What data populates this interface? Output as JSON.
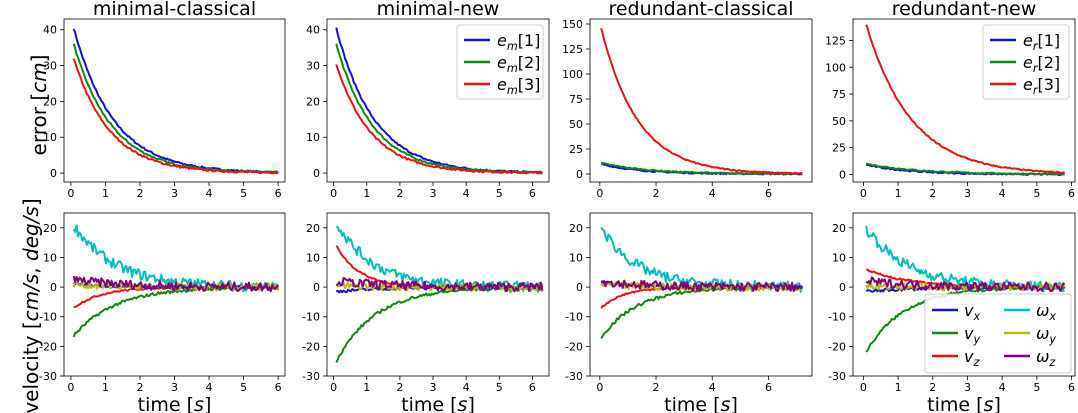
{
  "figure": {
    "ylabel_top": "error [cm]",
    "ylabel_bottom": "velocity [cm/s, deg/s]",
    "xlabel": "time [s]"
  },
  "chart_data": [
    {
      "type": "line",
      "title": "minimal-classical",
      "ylabel": "error [cm]",
      "xlabel": "",
      "xlim": [
        -0.2,
        6.2
      ],
      "ylim": [
        -2.5,
        43
      ],
      "xticks": [
        0,
        1,
        2,
        3,
        4,
        5,
        6
      ],
      "yticks": [
        0,
        10,
        20,
        30,
        40
      ],
      "series": [
        {
          "color": "#1010e0",
          "start": 40.5,
          "tau": 1.15,
          "tmin": 0.08,
          "tmax": 6.0,
          "noise": 0.25
        },
        {
          "color": "#118811",
          "start": 36.0,
          "tau": 1.1,
          "tmin": 0.08,
          "tmax": 6.0,
          "noise": 0.25
        },
        {
          "color": "#ee1111",
          "start": 32.0,
          "tau": 1.05,
          "tmin": 0.08,
          "tmax": 6.0,
          "noise": 0.25
        }
      ]
    },
    {
      "type": "line",
      "title": "minimal-new",
      "ylabel": "",
      "xlabel": "",
      "xlim": [
        -0.2,
        6.5
      ],
      "ylim": [
        -2.5,
        43
      ],
      "xticks": [
        0,
        1,
        2,
        3,
        4,
        5,
        6
      ],
      "yticks": [
        0,
        10,
        20,
        30,
        40
      ],
      "legend": {
        "position": "top-right"
      },
      "series": [
        {
          "name": "e_m[1]",
          "color": "#1010e0",
          "start": 40.5,
          "tau": 1.15,
          "tmin": 0.08,
          "tmax": 6.3,
          "noise": 0.25
        },
        {
          "name": "e_m[2]",
          "color": "#118811",
          "start": 36.0,
          "tau": 1.1,
          "tmin": 0.08,
          "tmax": 6.3,
          "noise": 0.25
        },
        {
          "name": "e_m[3]",
          "color": "#ee1111",
          "start": 30.5,
          "tau": 1.05,
          "tmin": 0.08,
          "tmax": 6.3,
          "noise": 0.25
        }
      ]
    },
    {
      "type": "line",
      "title": "redundant-classical",
      "ylabel": "",
      "xlabel": "",
      "xlim": [
        -0.35,
        7.55
      ],
      "ylim": [
        -8,
        155
      ],
      "xticks": [
        0,
        2,
        4,
        6
      ],
      "yticks": [
        0,
        25,
        50,
        75,
        100,
        125,
        150
      ],
      "series": [
        {
          "color": "#1010e0",
          "start": 10.0,
          "tau": 1.4,
          "tmin": 0.05,
          "tmax": 7.2,
          "noise": 0.6
        },
        {
          "color": "#118811",
          "start": 11.0,
          "tau": 1.7,
          "tmin": 0.05,
          "tmax": 7.2,
          "noise": 0.6
        },
        {
          "color": "#ee1111",
          "start": 146.0,
          "tau": 1.3,
          "tmin": 0.05,
          "tmax": 7.2,
          "noise": 0.6
        }
      ]
    },
    {
      "type": "line",
      "title": "redundant-new",
      "ylabel": "",
      "xlabel": "",
      "xlim": [
        -0.3,
        6.1
      ],
      "ylim": [
        -7,
        145
      ],
      "xticks": [
        0,
        1,
        2,
        3,
        4,
        5,
        6
      ],
      "yticks": [
        0,
        25,
        50,
        75,
        100,
        125
      ],
      "legend": {
        "position": "top-right"
      },
      "series": [
        {
          "name": "e_r[1]",
          "color": "#1010e0",
          "start": 9.0,
          "tau": 1.3,
          "tmin": 0.08,
          "tmax": 5.8,
          "noise": 0.6
        },
        {
          "name": "e_r[2]",
          "color": "#118811",
          "start": 10.0,
          "tau": 1.6,
          "tmin": 0.08,
          "tmax": 5.8,
          "noise": 0.6
        },
        {
          "name": "e_r[3]",
          "color": "#ee1111",
          "start": 140.0,
          "tau": 1.3,
          "tmin": 0.08,
          "tmax": 5.8,
          "noise": 0.6
        }
      ]
    },
    {
      "type": "line",
      "title": "",
      "ylabel": "velocity [cm/s, deg/s]",
      "xlabel": "time [s]",
      "xlim": [
        -0.2,
        6.2
      ],
      "ylim": [
        -30,
        25
      ],
      "xticks": [
        0,
        1,
        2,
        3,
        4,
        5,
        6
      ],
      "yticks": [
        -30,
        -20,
        -10,
        0,
        10,
        20
      ],
      "series": [
        {
          "color": "#00bebe",
          "start": 21.0,
          "tau": 1.2,
          "tmin": 0.08,
          "tmax": 6.0,
          "noise": 1.8
        },
        {
          "color": "#118811",
          "start": -16.5,
          "tau": 1.2,
          "tmin": 0.08,
          "tmax": 6.0,
          "noise": 0.5
        },
        {
          "color": "#ee1111",
          "start": -7.0,
          "tau": 0.8,
          "tmin": 0.08,
          "tmax": 6.0,
          "noise": 0.3
        },
        {
          "color": "#1010e0",
          "start": 1.0,
          "tau": 1.2,
          "tmin": 0.08,
          "tmax": 6.0,
          "noise": 0.5
        },
        {
          "color": "#bbbb00",
          "start": 1.0,
          "tau": 1.0,
          "tmin": 0.08,
          "tmax": 6.0,
          "noise": 1.2
        },
        {
          "color": "#800080",
          "start": 2.5,
          "tau": 1.5,
          "tmin": 0.08,
          "tmax": 6.0,
          "noise": 1.5
        }
      ]
    },
    {
      "type": "line",
      "title": "",
      "ylabel": "",
      "xlabel": "time [s]",
      "xlim": [
        -0.2,
        6.5
      ],
      "ylim": [
        -30,
        25
      ],
      "xticks": [
        0,
        1,
        2,
        3,
        4,
        5,
        6
      ],
      "yticks": [
        -30,
        -20,
        -10,
        0,
        10,
        20
      ],
      "series": [
        {
          "color": "#00bebe",
          "start": 22.0,
          "tau": 1.1,
          "tmin": 0.08,
          "tmax": 6.3,
          "noise": 1.8
        },
        {
          "color": "#118811",
          "start": -25.0,
          "tau": 1.2,
          "tmin": 0.08,
          "tmax": 6.3,
          "noise": 0.5
        },
        {
          "color": "#ee1111",
          "start": 14.0,
          "tau": 0.7,
          "tmin": 0.08,
          "tmax": 6.3,
          "noise": 0.3
        },
        {
          "color": "#1010e0",
          "start": -1.5,
          "tau": 1.5,
          "tmin": 0.08,
          "tmax": 6.3,
          "noise": 0.5
        },
        {
          "color": "#bbbb00",
          "start": 0.5,
          "tau": 1.0,
          "tmin": 0.08,
          "tmax": 6.3,
          "noise": 1.2
        },
        {
          "color": "#800080",
          "start": 2.0,
          "tau": 1.5,
          "tmin": 0.08,
          "tmax": 6.3,
          "noise": 1.5
        }
      ]
    },
    {
      "type": "line",
      "title": "",
      "ylabel": "",
      "xlabel": "time [s]",
      "xlim": [
        -0.35,
        7.55
      ],
      "ylim": [
        -30,
        25
      ],
      "xticks": [
        0,
        2,
        4,
        6
      ],
      "yticks": [
        -30,
        -20,
        -10,
        0,
        10,
        20
      ],
      "series": [
        {
          "color": "#00bebe",
          "start": 20.0,
          "tau": 1.3,
          "tmin": 0.05,
          "tmax": 7.2,
          "noise": 1.8
        },
        {
          "color": "#118811",
          "start": -17.0,
          "tau": 1.3,
          "tmin": 0.05,
          "tmax": 7.2,
          "noise": 0.5
        },
        {
          "color": "#ee1111",
          "start": -7.0,
          "tau": 0.8,
          "tmin": 0.05,
          "tmax": 7.2,
          "noise": 0.3
        },
        {
          "color": "#1010e0",
          "start": 1.5,
          "tau": 1.3,
          "tmin": 0.05,
          "tmax": 7.2,
          "noise": 0.5
        },
        {
          "color": "#bbbb00",
          "start": 1.0,
          "tau": 1.0,
          "tmin": 0.05,
          "tmax": 7.2,
          "noise": 1.2
        },
        {
          "color": "#800080",
          "start": 2.0,
          "tau": 1.5,
          "tmin": 0.05,
          "tmax": 7.2,
          "noise": 1.5
        }
      ]
    },
    {
      "type": "line",
      "title": "",
      "ylabel": "",
      "xlabel": "time [s]",
      "xlim": [
        -0.3,
        6.1
      ],
      "ylim": [
        -30,
        25
      ],
      "xticks": [
        0,
        1,
        2,
        3,
        4,
        5,
        6
      ],
      "yticks": [
        -30,
        -20,
        -10,
        0,
        10,
        20
      ],
      "legend": {
        "position": "bottom-right",
        "columns": 2
      },
      "series": [
        {
          "name": "v_x",
          "color": "#1010e0",
          "start": -1.5,
          "tau": 1.5,
          "tmin": 0.08,
          "tmax": 5.8,
          "noise": 0.5
        },
        {
          "name": "v_y",
          "color": "#118811",
          "start": -22.0,
          "tau": 1.1,
          "tmin": 0.08,
          "tmax": 5.8,
          "noise": 0.5
        },
        {
          "name": "v_z",
          "color": "#ee1111",
          "start": 6.0,
          "tau": 1.2,
          "tmin": 0.08,
          "tmax": 5.8,
          "noise": 0.3
        },
        {
          "name": "ω_x",
          "color": "#00bebe",
          "start": 20.0,
          "tau": 1.2,
          "tmin": 0.08,
          "tmax": 5.8,
          "noise": 1.8
        },
        {
          "name": "ω_y",
          "color": "#bbbb00",
          "start": 0.5,
          "tau": 1.0,
          "tmin": 0.08,
          "tmax": 5.8,
          "noise": 1.2
        },
        {
          "name": "ω_z",
          "color": "#800080",
          "start": 2.0,
          "tau": 1.5,
          "tmin": 0.08,
          "tmax": 5.8,
          "noise": 1.5
        }
      ]
    }
  ]
}
